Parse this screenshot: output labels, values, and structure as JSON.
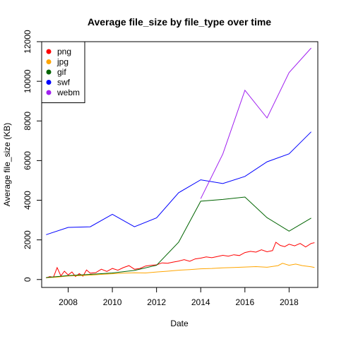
{
  "chart_data": {
    "type": "line",
    "title": "Average file_size by file_type over time",
    "xlabel": "Date",
    "ylabel": "Average file_size (KB)",
    "xlim": [
      2006.8,
      2019.3
    ],
    "ylim": [
      -400,
      12000
    ],
    "x_ticks": [
      2008,
      2010,
      2012,
      2014,
      2016,
      2018
    ],
    "y_ticks": [
      0,
      2000,
      4000,
      6000,
      8000,
      10000,
      12000
    ],
    "grid": false,
    "legend_position": "top-left",
    "series": [
      {
        "name": "png",
        "color": "#ff0000",
        "points": [
          [
            2007.0,
            80
          ],
          [
            2007.17,
            150
          ],
          [
            2007.33,
            110
          ],
          [
            2007.5,
            600
          ],
          [
            2007.67,
            180
          ],
          [
            2007.83,
            420
          ],
          [
            2008.0,
            230
          ],
          [
            2008.17,
            380
          ],
          [
            2008.33,
            150
          ],
          [
            2008.5,
            300
          ],
          [
            2008.67,
            170
          ],
          [
            2008.83,
            480
          ],
          [
            2009.0,
            320
          ],
          [
            2009.25,
            350
          ],
          [
            2009.5,
            520
          ],
          [
            2009.75,
            410
          ],
          [
            2010.0,
            560
          ],
          [
            2010.25,
            470
          ],
          [
            2010.5,
            600
          ],
          [
            2010.75,
            700
          ],
          [
            2011.0,
            520
          ],
          [
            2011.25,
            560
          ],
          [
            2011.5,
            680
          ],
          [
            2011.75,
            720
          ],
          [
            2012.0,
            740
          ],
          [
            2012.25,
            840
          ],
          [
            2012.5,
            820
          ],
          [
            2012.75,
            880
          ],
          [
            2013.0,
            930
          ],
          [
            2013.25,
            1000
          ],
          [
            2013.5,
            920
          ],
          [
            2013.75,
            1040
          ],
          [
            2014.0,
            1080
          ],
          [
            2014.25,
            1140
          ],
          [
            2014.5,
            1100
          ],
          [
            2014.75,
            1160
          ],
          [
            2015.0,
            1220
          ],
          [
            2015.25,
            1180
          ],
          [
            2015.5,
            1250
          ],
          [
            2015.75,
            1210
          ],
          [
            2016.0,
            1360
          ],
          [
            2016.25,
            1420
          ],
          [
            2016.5,
            1380
          ],
          [
            2016.75,
            1500
          ],
          [
            2017.0,
            1400
          ],
          [
            2017.25,
            1460
          ],
          [
            2017.4,
            1880
          ],
          [
            2017.6,
            1720
          ],
          [
            2017.8,
            1660
          ],
          [
            2018.0,
            1780
          ],
          [
            2018.25,
            1700
          ],
          [
            2018.5,
            1820
          ],
          [
            2018.75,
            1640
          ],
          [
            2019.0,
            1820
          ],
          [
            2019.15,
            1860
          ]
        ]
      },
      {
        "name": "jpg",
        "color": "#ffa500",
        "points": [
          [
            2007.0,
            90
          ],
          [
            2007.5,
            120
          ],
          [
            2008.0,
            180
          ],
          [
            2008.5,
            200
          ],
          [
            2009.0,
            220
          ],
          [
            2009.5,
            260
          ],
          [
            2010.0,
            290
          ],
          [
            2010.5,
            320
          ],
          [
            2011.0,
            340
          ],
          [
            2011.5,
            330
          ],
          [
            2012.0,
            380
          ],
          [
            2012.5,
            420
          ],
          [
            2013.0,
            470
          ],
          [
            2013.5,
            500
          ],
          [
            2014.0,
            540
          ],
          [
            2014.5,
            560
          ],
          [
            2015.0,
            590
          ],
          [
            2015.5,
            610
          ],
          [
            2016.0,
            630
          ],
          [
            2016.5,
            650
          ],
          [
            2017.0,
            620
          ],
          [
            2017.5,
            700
          ],
          [
            2017.7,
            820
          ],
          [
            2018.0,
            720
          ],
          [
            2018.3,
            780
          ],
          [
            2018.6,
            700
          ],
          [
            2019.0,
            640
          ],
          [
            2019.15,
            610
          ]
        ]
      },
      {
        "name": "gif",
        "color": "#006400",
        "points": [
          [
            2007.0,
            100
          ],
          [
            2008.0,
            200
          ],
          [
            2009.0,
            260
          ],
          [
            2010.0,
            330
          ],
          [
            2011.0,
            460
          ],
          [
            2012.0,
            720
          ],
          [
            2013.0,
            1880
          ],
          [
            2014.0,
            3950
          ],
          [
            2015.0,
            4040
          ],
          [
            2016.0,
            4160
          ],
          [
            2017.0,
            3120
          ],
          [
            2018.0,
            2440
          ],
          [
            2019.0,
            3100
          ]
        ]
      },
      {
        "name": "swf",
        "color": "#0000ff",
        "points": [
          [
            2007.0,
            2260
          ],
          [
            2008.0,
            2630
          ],
          [
            2009.0,
            2660
          ],
          [
            2010.0,
            3290
          ],
          [
            2011.0,
            2660
          ],
          [
            2012.0,
            3110
          ],
          [
            2013.0,
            4380
          ],
          [
            2014.0,
            5030
          ],
          [
            2015.0,
            4840
          ],
          [
            2016.0,
            5200
          ],
          [
            2017.0,
            5940
          ],
          [
            2018.0,
            6340
          ],
          [
            2019.0,
            7450
          ]
        ]
      },
      {
        "name": "webm",
        "color": "#a020f0",
        "points": [
          [
            2014.0,
            4080
          ],
          [
            2015.0,
            6330
          ],
          [
            2016.0,
            9550
          ],
          [
            2017.0,
            8150
          ],
          [
            2018.0,
            10440
          ],
          [
            2019.0,
            11680
          ]
        ]
      }
    ]
  }
}
